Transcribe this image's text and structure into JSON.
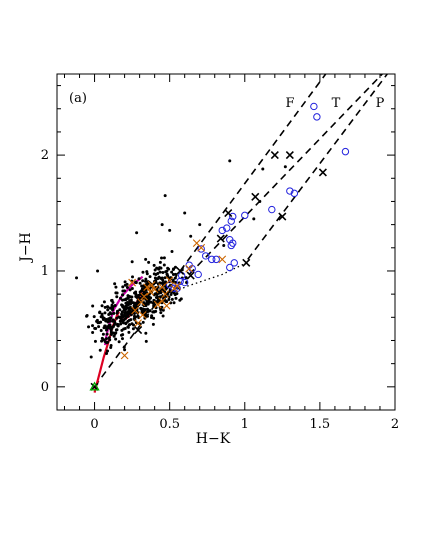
{
  "chart_data": {
    "type": "scatter",
    "title": "",
    "panel_label": "(a)",
    "xlabel": "H−K",
    "ylabel": "J−H",
    "xlim": [
      -0.25,
      2.0
    ],
    "ylim": [
      -0.2,
      2.7
    ],
    "xticks": [
      0,
      0.5,
      1,
      1.5,
      2
    ],
    "xtick_labels": [
      "0",
      "0.5",
      "1",
      "1.5",
      "2"
    ],
    "yticks": [
      0,
      1,
      2
    ],
    "ytick_labels": [
      "0",
      "1",
      "2"
    ],
    "grid": false,
    "legend": "none",
    "colors": {
      "black_points": "#000000",
      "blue_circles": "#2222dd",
      "orange_crosses": "#cc6600",
      "red_curve": "#dd0022",
      "magenta_curve": "#cc00aa",
      "green_marker": "#00aa00"
    },
    "band_labels": [
      {
        "text": "F",
        "x": 1.65,
        "y": 2.4
      },
      {
        "text": "T",
        "x": 1.62,
        "y": 2.4
      },
      {
        "text": "P",
        "x": 1.9,
        "y": 2.4
      }
    ],
    "reddening_lines": [
      {
        "name": "F",
        "x": [
          0.0,
          1.55
        ],
        "y": [
          0.0,
          2.72
        ]
      },
      {
        "name": "T",
        "x": [
          0.63,
          1.93
        ],
        "y": [
          0.97,
          2.72
        ]
      },
      {
        "name": "P",
        "x": [
          1.02,
          1.96
        ],
        "y": [
          1.1,
          2.72
        ]
      }
    ],
    "reddening_markers": {
      "F": {
        "x": [
          0.0,
          0.29,
          0.57,
          0.89,
          1.2
        ],
        "y": [
          0.0,
          0.49,
          1.0,
          1.5,
          2.0
        ]
      },
      "T": {
        "x": [
          0.64,
          0.84,
          1.07,
          1.3
        ],
        "y": [
          0.96,
          1.28,
          1.64,
          2.0
        ]
      },
      "P": {
        "x": [
          1.01,
          1.25,
          1.52
        ],
        "y": [
          1.07,
          1.47,
          1.85
        ]
      }
    },
    "ctts_locus": {
      "x": [
        0.23,
        0.44,
        0.62,
        0.85,
        1.01
      ],
      "y": [
        0.66,
        0.77,
        0.87,
        0.97,
        1.07
      ]
    },
    "main_sequence_curve": {
      "x": [
        0.0,
        0.03,
        0.06,
        0.1,
        0.12,
        0.14,
        0.15,
        0.16,
        0.15,
        0.16,
        0.19,
        0.21,
        0.25,
        0.27,
        0.3,
        0.32
      ],
      "y": [
        -0.05,
        0.1,
        0.25,
        0.42,
        0.52,
        0.58,
        0.62,
        0.64,
        0.62,
        0.6,
        0.58,
        0.59,
        0.63,
        0.7,
        0.78,
        0.85
      ]
    },
    "giant_curve": {
      "x": [
        0.07,
        0.08,
        0.1,
        0.13,
        0.18,
        0.25,
        0.32
      ],
      "y": [
        0.36,
        0.45,
        0.55,
        0.67,
        0.78,
        0.88,
        0.95
      ]
    },
    "blue_circles": {
      "x": [
        1.46,
        1.48,
        1.67,
        1.3,
        1.33,
        1.18,
        1.0,
        0.92,
        0.91,
        0.88,
        0.85,
        0.9,
        0.92,
        0.91,
        0.93,
        0.81,
        0.78,
        0.71,
        0.74,
        0.69,
        0.63,
        0.58,
        0.57,
        0.55,
        0.53,
        0.5,
        0.9,
        0.65,
        0.6
      ],
      "y": [
        2.42,
        2.33,
        2.03,
        1.69,
        1.67,
        1.53,
        1.48,
        1.47,
        1.43,
        1.37,
        1.35,
        1.27,
        1.24,
        1.22,
        1.07,
        1.1,
        1.1,
        1.19,
        1.13,
        0.97,
        1.05,
        0.96,
        0.91,
        0.85,
        0.85,
        0.88,
        1.03,
        1.02,
        0.9
      ]
    },
    "orange_crosses": {
      "x": [
        0.63,
        0.85,
        0.71,
        0.68,
        0.5,
        0.55,
        0.53,
        0.45,
        0.45,
        0.38,
        0.37,
        0.33,
        0.31,
        0.32,
        0.29,
        0.47,
        0.48,
        0.42,
        0.25,
        0.2,
        0.27,
        0.35,
        0.4
      ],
      "y": [
        1.02,
        1.1,
        1.2,
        1.24,
        0.92,
        0.87,
        0.85,
        0.86,
        0.74,
        0.88,
        0.82,
        0.78,
        0.73,
        0.62,
        0.55,
        0.8,
        0.7,
        0.71,
        0.9,
        0.27,
        0.66,
        0.86,
        0.84
      ]
    },
    "green_marker": {
      "x": 0.0,
      "y": 0.0
    }
  }
}
